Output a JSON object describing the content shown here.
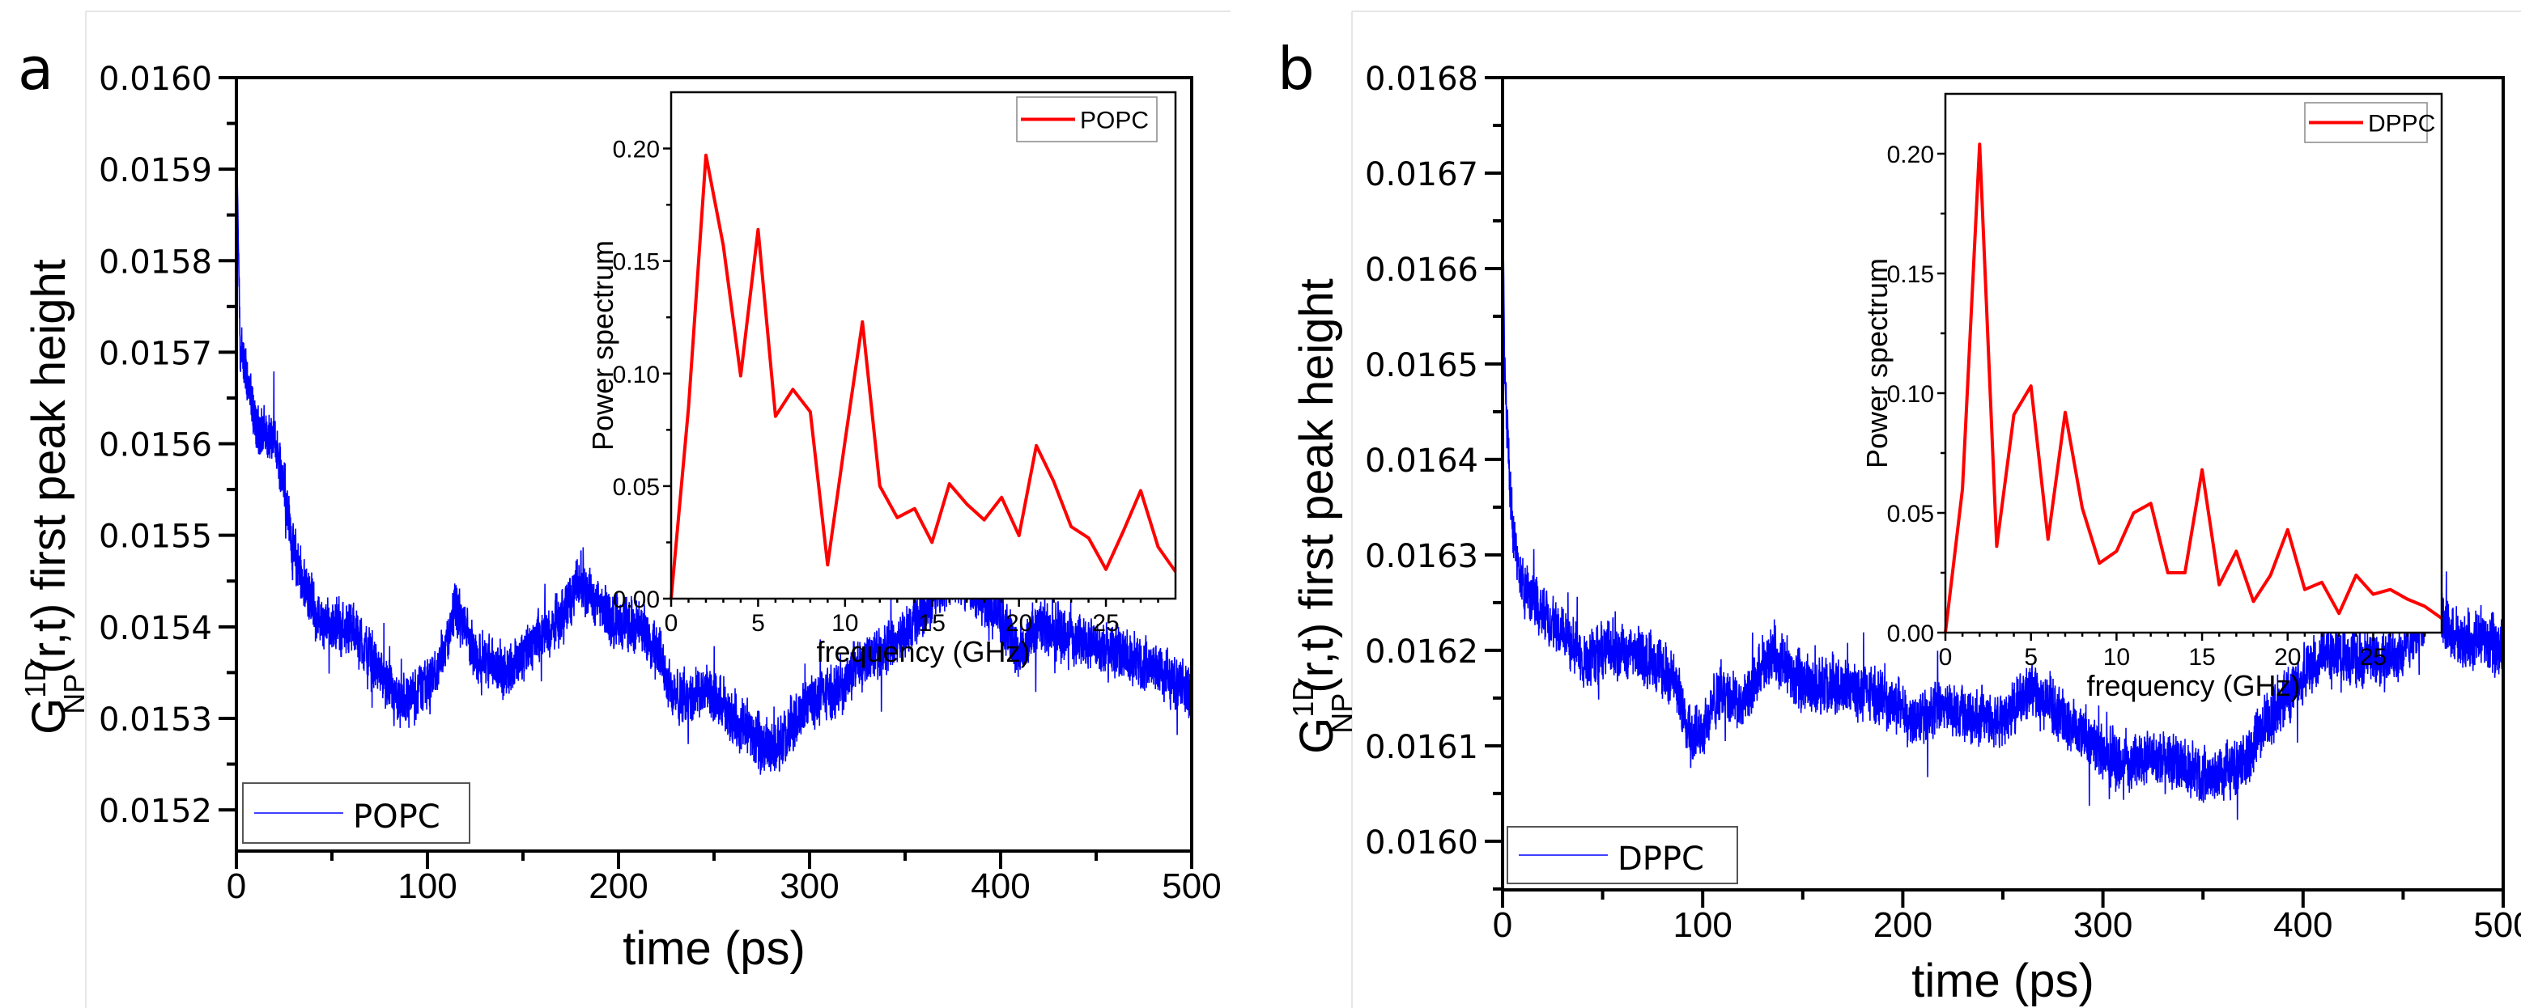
{
  "chart_data": [
    {
      "panel": "a",
      "type": "line",
      "ylabel": {
        "main": "G",
        "sup": "1D",
        "sub": "NP",
        "rest": "(r,t) first peak height"
      },
      "xlabel": "time (ps)",
      "xlim": [
        0,
        500
      ],
      "ylim": [
        0.015155,
        0.016
      ],
      "xticks": [
        "0",
        "100",
        "200",
        "300",
        "400",
        "500"
      ],
      "xtick_values": [
        0,
        100,
        200,
        300,
        400,
        500
      ],
      "yticks": [
        "0.0152",
        "0.0153",
        "0.0154",
        "0.0155",
        "0.0156",
        "0.0157",
        "0.0158",
        "0.0159",
        "0.0160"
      ],
      "ytick_values": [
        0.0152,
        0.0153,
        0.0154,
        0.0155,
        0.0156,
        0.0157,
        0.0158,
        0.0159,
        0.016
      ],
      "legend": {
        "label": "POPC",
        "placement": "bottom-left"
      },
      "series": [
        {
          "name": "POPC",
          "color": "#0000ff",
          "noise_amplitude": 3.5e-05,
          "trend": {
            "x": [
              0,
              2,
              5,
              10,
              20,
              25,
              30,
              35,
              45,
              60,
              75,
              85,
              95,
              105,
              115,
              125,
              140,
              155,
              170,
              180,
              195,
              210,
              220,
              230,
              245,
              260,
              275,
              285,
              300,
              315,
              330,
              345,
              360,
              375,
              390,
              400,
              410,
              420,
              435,
              450,
              465,
              480,
              490,
              500
            ],
            "y": [
              0.01595,
              0.0157,
              0.01568,
              0.01562,
              0.0156,
              0.01556,
              0.01548,
              0.01545,
              0.0154,
              0.0154,
              0.01535,
              0.01531,
              0.01533,
              0.01535,
              0.01542,
              0.01537,
              0.01535,
              0.01538,
              0.01541,
              0.01545,
              0.01541,
              0.0154,
              0.01538,
              0.01532,
              0.01533,
              0.0153,
              0.01527,
              0.01527,
              0.01532,
              0.01533,
              0.01537,
              0.01538,
              0.01542,
              0.01546,
              0.01543,
              0.01541,
              0.01537,
              0.0154,
              0.01539,
              0.01538,
              0.01537,
              0.01536,
              0.01534,
              0.01533
            ]
          }
        }
      ],
      "inset": {
        "type": "line",
        "xlabel": "frequency (GHz)",
        "ylabel": "Power spectrum",
        "xlim": [
          0,
          29
        ],
        "ylim": [
          0,
          0.225
        ],
        "xticks": [
          "0",
          "5",
          "10",
          "15",
          "20",
          "25"
        ],
        "xtick_values": [
          0,
          5,
          10,
          15,
          20,
          25
        ],
        "yticks": [
          "0.00",
          "0.05",
          "0.10",
          "0.15",
          "0.20"
        ],
        "ytick_values": [
          0,
          0.05,
          0.1,
          0.15,
          0.2
        ],
        "legend": {
          "label": "POPC",
          "placement": "top-right"
        },
        "series": [
          {
            "name": "POPC",
            "color": "#ff0000",
            "x": [
              0,
              1,
              2,
              3,
              4,
              5,
              6,
              7,
              8,
              9,
              10,
              11,
              12,
              13,
              14,
              15,
              16,
              17,
              18,
              19,
              20,
              21,
              22,
              23,
              24,
              25,
              26,
              27,
              28,
              29
            ],
            "y": [
              0,
              0.085,
              0.197,
              0.157,
              0.099,
              0.164,
              0.081,
              0.093,
              0.083,
              0.015,
              0.07,
              0.123,
              0.05,
              0.036,
              0.04,
              0.025,
              0.051,
              0.042,
              0.035,
              0.045,
              0.028,
              0.068,
              0.052,
              0.032,
              0.027,
              0.013,
              0.03,
              0.048,
              0.023,
              0.012
            ]
          }
        ]
      }
    },
    {
      "panel": "b",
      "type": "line",
      "ylabel": {
        "main": "G",
        "sup": "1D",
        "sub": "NP",
        "rest": "(r,t) first peak height"
      },
      "xlabel": "time (ps)",
      "xlim": [
        0,
        500
      ],
      "ylim": [
        0.015949,
        0.0168
      ],
      "xticks": [
        "0",
        "100",
        "200",
        "300",
        "400",
        "500"
      ],
      "xtick_values": [
        0,
        100,
        200,
        300,
        400,
        500
      ],
      "yticks": [
        "0.0160",
        "0.0161",
        "0.0162",
        "0.0163",
        "0.0164",
        "0.0165",
        "0.0166",
        "0.0167",
        "0.0168"
      ],
      "ytick_values": [
        0.016,
        0.0161,
        0.0162,
        0.0163,
        0.0164,
        0.0165,
        0.0166,
        0.0167,
        0.0168
      ],
      "legend": {
        "label": "DPPC",
        "placement": "bottom-left"
      },
      "series": [
        {
          "name": "DPPC",
          "color": "#0000ff",
          "noise_amplitude": 3.5e-05,
          "trend": {
            "x": [
              0,
              1,
              3,
              5,
              10,
              20,
              30,
              40,
              50,
              60,
              75,
              85,
              95,
              100,
              110,
              120,
              135,
              145,
              160,
              175,
              190,
              205,
              220,
              235,
              250,
              265,
              280,
              295,
              310,
              325,
              340,
              355,
              370,
              380,
              395,
              410,
              430,
              450,
              465,
              475,
              490,
              500
            ],
            "y": [
              0.01672,
              0.0165,
              0.0164,
              0.01633,
              0.01627,
              0.01624,
              0.01622,
              0.01619,
              0.0162,
              0.0162,
              0.01619,
              0.01617,
              0.01611,
              0.01612,
              0.01616,
              0.01614,
              0.0162,
              0.01617,
              0.01616,
              0.01616,
              0.01615,
              0.01613,
              0.01614,
              0.01613,
              0.01613,
              0.01616,
              0.01613,
              0.0161,
              0.01608,
              0.01609,
              0.01608,
              0.01607,
              0.01608,
              0.01612,
              0.01616,
              0.0162,
              0.01619,
              0.0162,
              0.01625,
              0.01621,
              0.01621,
              0.0162
            ]
          }
        }
      ],
      "inset": {
        "type": "line",
        "xlabel": "frequency (GHz)",
        "ylabel": "Power spectrum",
        "xlim": [
          0,
          29
        ],
        "ylim": [
          0,
          0.225
        ],
        "xticks": [
          "0",
          "5",
          "10",
          "15",
          "20",
          "25"
        ],
        "xtick_values": [
          0,
          5,
          10,
          15,
          20,
          25
        ],
        "yticks": [
          "0.00",
          "0.05",
          "0.10",
          "0.15",
          "0.20"
        ],
        "ytick_values": [
          0,
          0.05,
          0.1,
          0.15,
          0.2
        ],
        "legend": {
          "label": "DPPC",
          "placement": "top-right"
        },
        "series": [
          {
            "name": "DPPC",
            "color": "#ff0000",
            "x": [
              0,
              1,
              2,
              3,
              4,
              5,
              6,
              7,
              8,
              9,
              10,
              11,
              12,
              13,
              14,
              15,
              16,
              17,
              18,
              19,
              20,
              21,
              22,
              23,
              24,
              25,
              26,
              27,
              28,
              29
            ],
            "y": [
              0,
              0.06,
              0.204,
              0.036,
              0.091,
              0.103,
              0.039,
              0.092,
              0.052,
              0.029,
              0.034,
              0.05,
              0.054,
              0.025,
              0.025,
              0.068,
              0.02,
              0.034,
              0.013,
              0.024,
              0.043,
              0.018,
              0.021,
              0.008,
              0.024,
              0.016,
              0.018,
              0.014,
              0.011,
              0.006
            ]
          }
        ]
      }
    }
  ]
}
